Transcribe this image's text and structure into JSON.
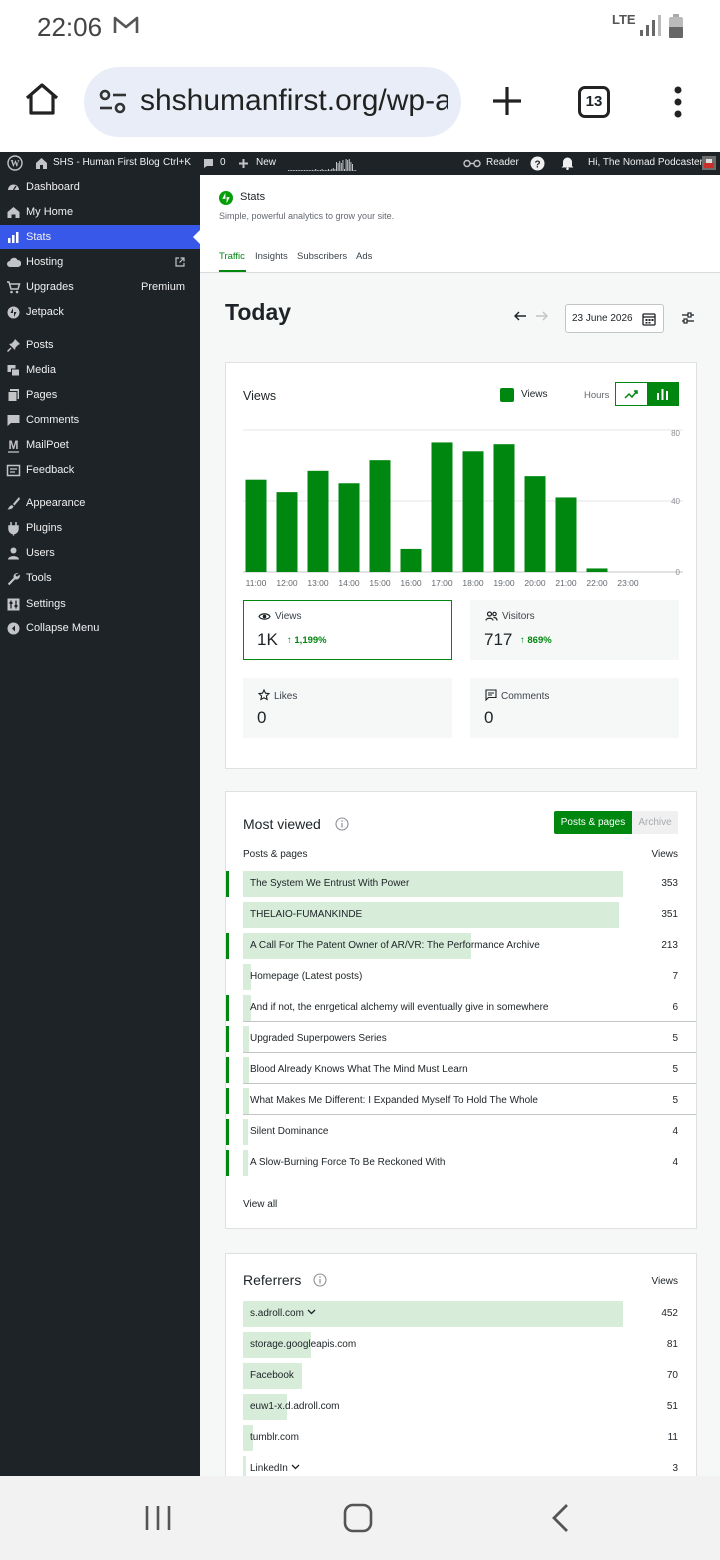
{
  "status_bar": {
    "time": "22:06",
    "network": "LTE"
  },
  "browser": {
    "url": "shshumanfirst.org/wp-a",
    "tab_count": "13"
  },
  "admin_bar": {
    "site_name": "SHS - Human First Blog",
    "shortcut": "Ctrl+K",
    "comments_count": "0",
    "new_label": "New",
    "reader_label": "Reader",
    "greeting": "Hi, The Nomad Podcaster"
  },
  "sidebar": {
    "items": [
      {
        "label": "Dashboard",
        "icon": "dashboard-icon"
      },
      {
        "label": "My Home",
        "icon": "home-icon"
      },
      {
        "label": "Stats",
        "icon": "stats-icon"
      },
      {
        "label": "Hosting",
        "icon": "cloud-icon"
      },
      {
        "label": "Upgrades",
        "icon": "cart-icon",
        "extra": "Premium"
      },
      {
        "label": "Jetpack",
        "icon": "jetpack-icon"
      },
      {
        "label": "Posts",
        "icon": "pin-icon"
      },
      {
        "label": "Media",
        "icon": "media-icon"
      },
      {
        "label": "Pages",
        "icon": "pages-icon"
      },
      {
        "label": "Comments",
        "icon": "comment-icon"
      },
      {
        "label": "MailPoet",
        "icon": "mailpoet-icon"
      },
      {
        "label": "Feedback",
        "icon": "feedback-icon"
      },
      {
        "label": "Appearance",
        "icon": "brush-icon"
      },
      {
        "label": "Plugins",
        "icon": "plugin-icon"
      },
      {
        "label": "Users",
        "icon": "user-icon"
      },
      {
        "label": "Tools",
        "icon": "wrench-icon"
      },
      {
        "label": "Settings",
        "icon": "settings-icon"
      },
      {
        "label": "Collapse Menu",
        "icon": "collapse-icon"
      }
    ]
  },
  "header": {
    "title": "Stats",
    "subtitle": "Simple, powerful analytics to grow your site.",
    "tabs": [
      "Traffic",
      "Insights",
      "Subscribers",
      "Ads"
    ]
  },
  "period": {
    "title": "Today",
    "date": "23 June 2026"
  },
  "views_card": {
    "title": "Views",
    "legend": "Views",
    "granularity": "Hours"
  },
  "chart_data": {
    "type": "bar",
    "categories": [
      "11:00",
      "12:00",
      "13:00",
      "14:00",
      "15:00",
      "16:00",
      "17:00",
      "18:00",
      "19:00",
      "20:00",
      "21:00",
      "22:00",
      "23:00"
    ],
    "values": [
      52,
      45,
      57,
      50,
      63,
      13,
      73,
      68,
      72,
      54,
      42,
      2,
      0
    ],
    "ylim": [
      0,
      80
    ],
    "yticks": [
      "80",
      "40",
      "0"
    ],
    "color": "#008710",
    "grid": true
  },
  "stats": [
    {
      "label": "Views",
      "value": "1K",
      "delta": "1,199%"
    },
    {
      "label": "Visitors",
      "value": "717",
      "delta": "869%"
    },
    {
      "label": "Likes",
      "value": "0"
    },
    {
      "label": "Comments",
      "value": "0"
    }
  ],
  "most_viewed": {
    "title": "Most viewed",
    "toggle": [
      "Posts & pages",
      "Archive"
    ],
    "col_left": "Posts & pages",
    "col_right": "Views",
    "view_all": "View all",
    "rows": [
      {
        "title": "The System We Entrust With Power",
        "views": "353",
        "share": 1.0,
        "accent": true
      },
      {
        "title": "THELAIO-FUMANKINDE",
        "views": "351",
        "share": 0.99,
        "accent": false
      },
      {
        "title": "A Call For The Patent Owner of AR/VR: The Performance Archive",
        "views": "213",
        "share": 0.6,
        "accent": true
      },
      {
        "title": "Homepage (Latest posts)",
        "views": "7",
        "share": 0.02,
        "accent": false
      },
      {
        "title": "And if not, the enrgetical alchemy will eventually give in somewhere",
        "views": "6",
        "share": 0.02,
        "accent": true
      },
      {
        "title": "Upgraded Superpowers Series",
        "views": "5",
        "share": 0.015,
        "accent": true
      },
      {
        "title": "Blood Already Knows What The Mind Must Learn",
        "views": "5",
        "share": 0.015,
        "accent": true
      },
      {
        "title": "What Makes Me Different: I Expanded Myself To Hold The Whole",
        "views": "5",
        "share": 0.015,
        "accent": true
      },
      {
        "title": "Silent Dominance",
        "views": "4",
        "share": 0.012,
        "accent": true
      },
      {
        "title": "A Slow-Burning Force To Be Reckoned With",
        "views": "4",
        "share": 0.012,
        "accent": true
      }
    ]
  },
  "referrers": {
    "title": "Referrers",
    "col_right": "Views",
    "rows": [
      {
        "title": "s.adroll.com",
        "views": "452",
        "share": 1.0,
        "expand": true
      },
      {
        "title": "storage.googleapis.com",
        "views": "81",
        "share": 0.18,
        "expand": false
      },
      {
        "title": "Facebook",
        "views": "70",
        "share": 0.155,
        "expand": false
      },
      {
        "title": "euw1-x.d.adroll.com",
        "views": "51",
        "share": 0.115,
        "expand": false
      },
      {
        "title": "tumblr.com",
        "views": "11",
        "share": 0.025,
        "expand": false
      },
      {
        "title": "LinkedIn",
        "views": "3",
        "share": 0.007,
        "expand": true
      }
    ]
  }
}
